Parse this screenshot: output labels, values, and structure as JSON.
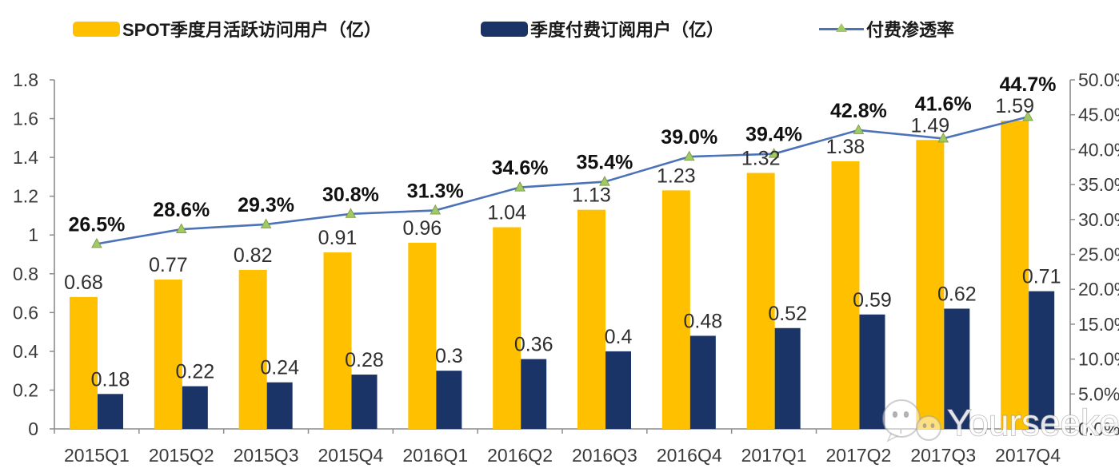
{
  "legend": [
    {
      "label": "SPOT季度月活跃访问用户（亿）",
      "type": "bar",
      "color": "#FFC000"
    },
    {
      "label": "季度付费订阅用户（亿）",
      "type": "bar",
      "color": "#1B3467"
    },
    {
      "label": "付费渗透率",
      "type": "line",
      "color": "#4C72B8",
      "marker_color": "#A3C965"
    }
  ],
  "colors": {
    "mau_bar": "#FFC000",
    "subs_bar": "#1B3467",
    "line": "#4C72B8",
    "marker_fill": "#A3C965",
    "marker_edge": "#7FA14C",
    "axis": "#8C8C8C",
    "tick_label": "#3B3B3B",
    "value_label": "#2F2F2F",
    "pct_label": "#111111"
  },
  "chart_data": {
    "type": "bar+line",
    "categories": [
      "2015Q1",
      "2015Q2",
      "2015Q3",
      "2015Q4",
      "2016Q1",
      "2016Q2",
      "2016Q3",
      "2016Q4",
      "2017Q1",
      "2017Q2",
      "2017Q3",
      "2017Q4"
    ],
    "series": [
      {
        "name": "SPOT季度月活跃访问用户（亿）",
        "type": "bar",
        "axis": "left",
        "values": [
          0.68,
          0.77,
          0.82,
          0.91,
          0.96,
          1.04,
          1.13,
          1.23,
          1.32,
          1.38,
          1.49,
          1.59
        ]
      },
      {
        "name": "季度付费订阅用户（亿）",
        "type": "bar",
        "axis": "left",
        "values": [
          0.18,
          0.22,
          0.24,
          0.28,
          0.3,
          0.36,
          0.4,
          0.48,
          0.52,
          0.59,
          0.62,
          0.71
        ]
      },
      {
        "name": "付费渗透率",
        "type": "line",
        "axis": "right",
        "values_percent": [
          26.5,
          28.6,
          29.3,
          30.8,
          31.3,
          34.6,
          35.4,
          39.0,
          39.4,
          42.8,
          41.6,
          44.7
        ]
      }
    ],
    "left_axis": {
      "min": 0,
      "max": 1.8,
      "tick_labels_top_to_bottom": [
        "1.8",
        "1.6",
        "1.4",
        "1.2",
        "1",
        "0.8",
        "0.6",
        "0.4",
        "0.2",
        "0"
      ]
    },
    "right_axis": {
      "min": 0,
      "max": 50,
      "tick_labels_top_to_bottom": [
        "50.0%",
        "45.0%",
        "40.0%",
        "35.0%",
        "30.0%",
        "25.0%",
        "20.0%",
        "15.0%",
        "10.0%",
        "5.0%",
        "0.0%"
      ]
    },
    "grid": false,
    "legend_position": "top",
    "data_labels_shown": true
  },
  "watermark": {
    "text": "Yourseeker",
    "icon": "wechat-icon"
  }
}
